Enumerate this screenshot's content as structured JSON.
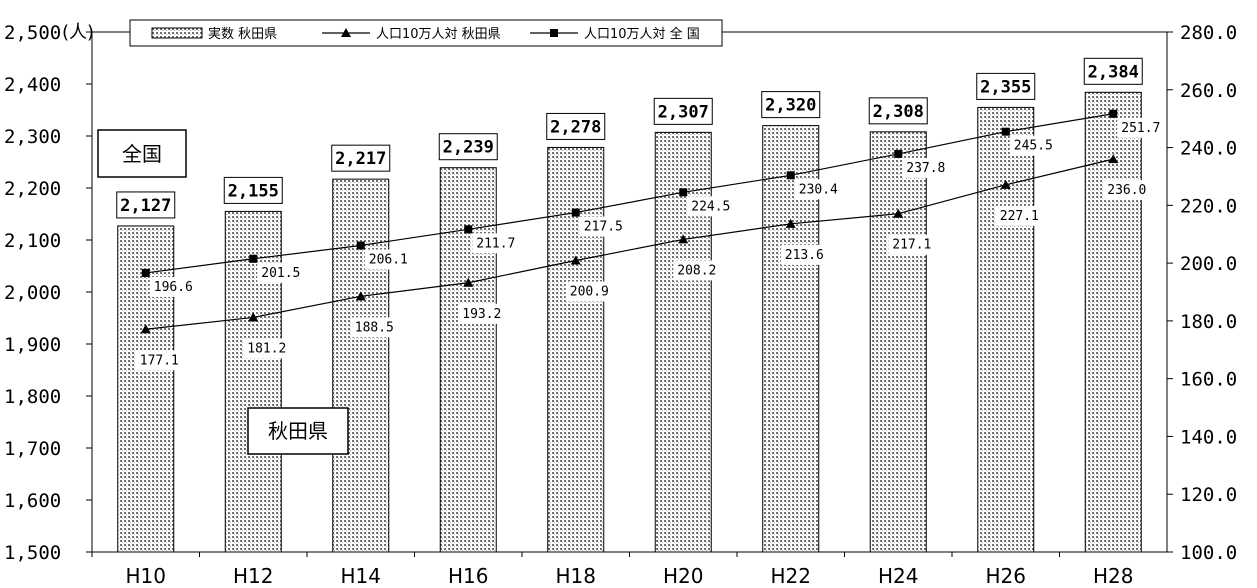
{
  "chart_data": {
    "type": "bar",
    "categories": [
      "H10",
      "H12",
      "H14",
      "H16",
      "H18",
      "H20",
      "H22",
      "H24",
      "H26",
      "H28"
    ],
    "series": [
      {
        "name": "実数 秋田県",
        "type": "bar",
        "axis": "left",
        "values": [
          2127,
          2155,
          2217,
          2239,
          2278,
          2307,
          2320,
          2308,
          2355,
          2384
        ],
        "labels": [
          "2,127",
          "2,155",
          "2,217",
          "2,239",
          "2,278",
          "2,307",
          "2,320",
          "2,308",
          "2,355",
          "2,384"
        ]
      },
      {
        "name": "人口10万人対 秋田県",
        "type": "line",
        "marker": "triangle",
        "axis": "right",
        "values": [
          177.1,
          181.2,
          188.5,
          193.2,
          200.9,
          208.2,
          213.6,
          217.1,
          227.1,
          236.0
        ],
        "labels": [
          "177.1",
          "181.2",
          "188.5",
          "193.2",
          "200.9",
          "208.2",
          "213.6",
          "217.1",
          "227.1",
          "236.0"
        ]
      },
      {
        "name": "人口10万人対 全 国",
        "type": "line",
        "marker": "square",
        "axis": "right",
        "values": [
          196.6,
          201.5,
          206.1,
          211.7,
          217.5,
          224.5,
          230.4,
          237.8,
          245.5,
          251.7
        ],
        "labels": [
          "196.6",
          "201.5",
          "206.1",
          "211.7",
          "217.5",
          "224.5",
          "230.4",
          "237.8",
          "245.5",
          "251.7"
        ]
      }
    ],
    "y_left": {
      "min": 1500,
      "max": 2500,
      "step": 100,
      "unit": "(人)",
      "ticks": [
        "1,500",
        "1,600",
        "1,700",
        "1,800",
        "1,900",
        "2,000",
        "2,100",
        "2,200",
        "2,300",
        "2,400",
        "2,500"
      ]
    },
    "y_right": {
      "min": 100,
      "max": 280,
      "step": 20,
      "ticks": [
        "100.0",
        "120.0",
        "140.0",
        "160.0",
        "180.0",
        "200.0",
        "220.0",
        "240.0",
        "260.0",
        "280.0"
      ]
    },
    "annotations": {
      "national": "全国",
      "akita": "秋田県"
    },
    "legend_position": "top",
    "grid": false
  }
}
